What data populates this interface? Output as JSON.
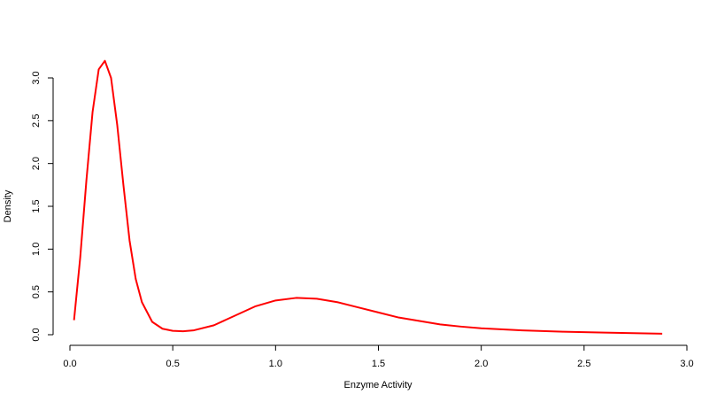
{
  "chart_data": {
    "type": "line",
    "x_label": "Enzyme Activity",
    "y_label": "Density",
    "x": [
      0.02,
      0.05,
      0.08,
      0.11,
      0.14,
      0.17,
      0.2,
      0.23,
      0.26,
      0.29,
      0.32,
      0.35,
      0.4,
      0.45,
      0.5,
      0.55,
      0.6,
      0.7,
      0.8,
      0.9,
      1.0,
      1.1,
      1.2,
      1.3,
      1.4,
      1.5,
      1.6,
      1.7,
      1.8,
      1.9,
      2.0,
      2.2,
      2.4,
      2.6,
      2.88
    ],
    "series": [
      {
        "color": "#ff0000",
        "values": [
          0.17,
          0.9,
          1.8,
          2.6,
          3.1,
          3.2,
          3.0,
          2.45,
          1.75,
          1.1,
          0.65,
          0.38,
          0.15,
          0.07,
          0.045,
          0.04,
          0.05,
          0.11,
          0.22,
          0.33,
          0.4,
          0.43,
          0.42,
          0.38,
          0.32,
          0.26,
          0.2,
          0.16,
          0.12,
          0.095,
          0.075,
          0.05,
          0.035,
          0.025,
          0.012
        ]
      }
    ],
    "xlim": [
      0,
      3
    ],
    "ylim": [
      0,
      3
    ],
    "xticks": [
      {
        "value": 0,
        "label": "0.0"
      },
      0.5,
      {
        "value": 1,
        "label": "1.0"
      },
      1.5,
      {
        "value": 2,
        "label": "2.0"
      },
      2.5,
      {
        "value": 3,
        "label": "3.0"
      }
    ],
    "yticks": [
      {
        "value": 0,
        "label": "0.0"
      },
      0.5,
      {
        "value": 1,
        "label": "1.0"
      },
      1.5,
      {
        "value": 2,
        "label": "2.0"
      },
      2.5,
      {
        "value": 3,
        "label": "3.0"
      }
    ]
  }
}
